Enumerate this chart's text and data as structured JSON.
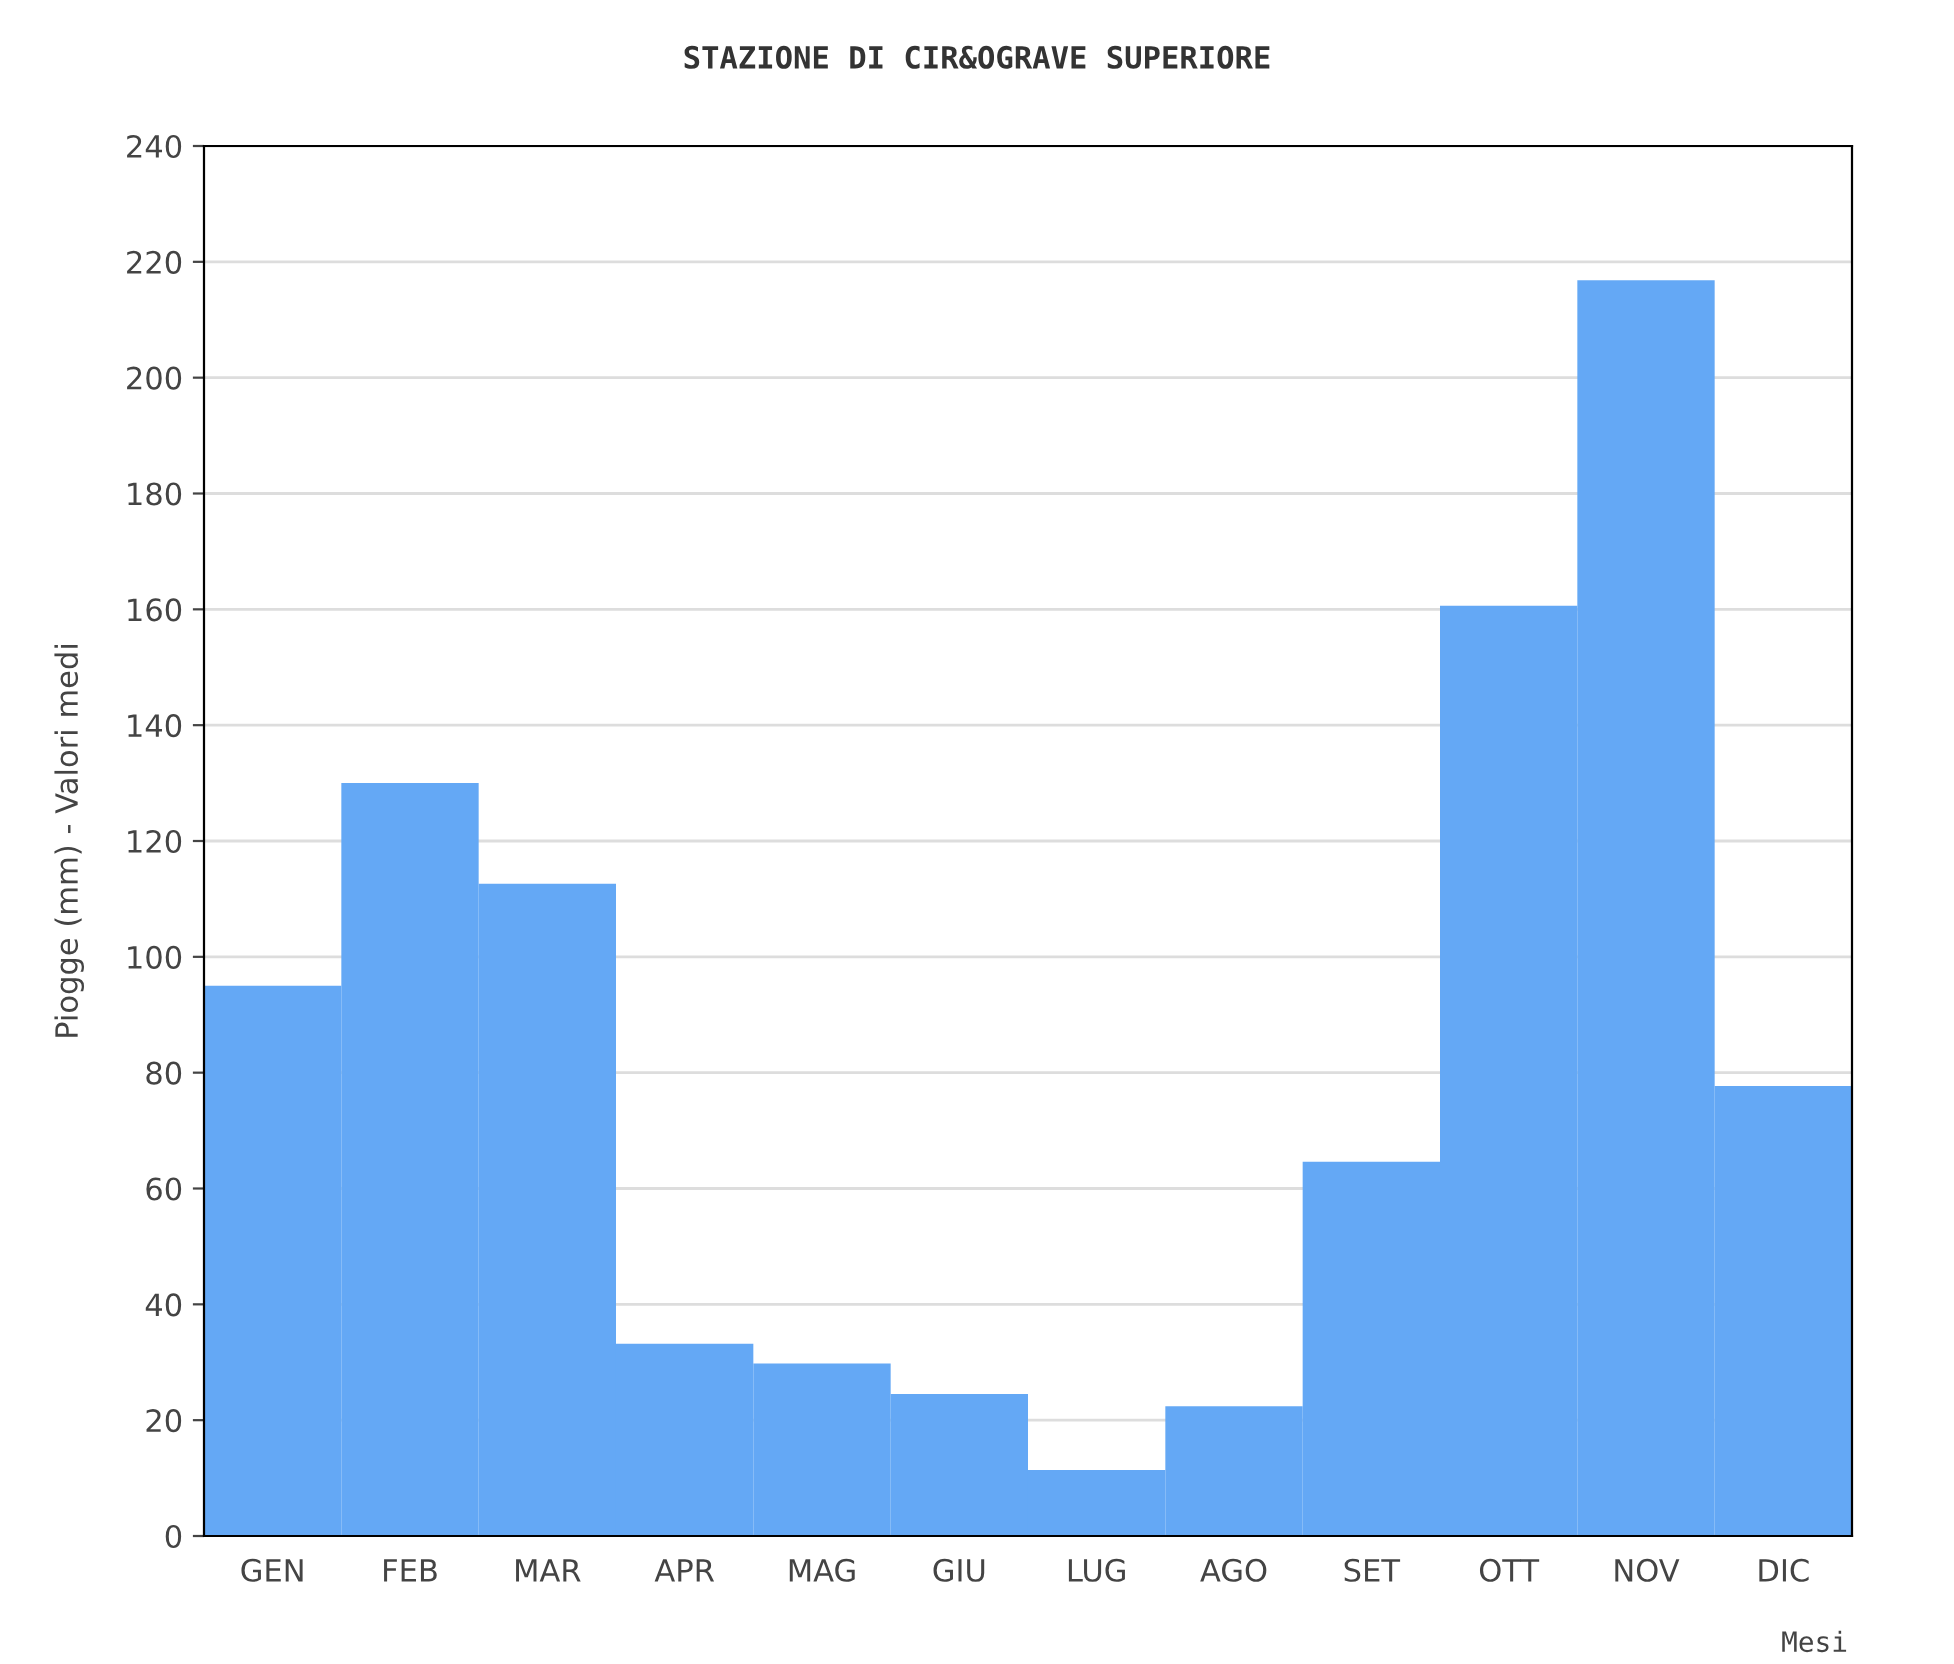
{
  "chart_data": {
    "type": "bar",
    "title": "STAZIONE DI CIR&OGRAVE SUPERIORE",
    "xlabel": "Mesi",
    "ylabel": "Piogge (mm) - Valori medi",
    "categories": [
      "GEN",
      "FEB",
      "MAR",
      "APR",
      "MAG",
      "GIU",
      "LUG",
      "AGO",
      "SET",
      "OTT",
      "NOV",
      "DIC"
    ],
    "series": [
      {
        "color": "#64a8f5",
        "values": [
          95,
          130,
          112.6,
          33.2,
          29.8,
          24.5,
          11.4,
          22.4,
          64.6,
          160.6,
          216.8,
          77.7
        ]
      }
    ],
    "ylim": [
      0,
      240
    ],
    "yticks": [
      0,
      20,
      40,
      60,
      80,
      100,
      120,
      140,
      160,
      180,
      200,
      220,
      240
    ],
    "grid": "y"
  }
}
